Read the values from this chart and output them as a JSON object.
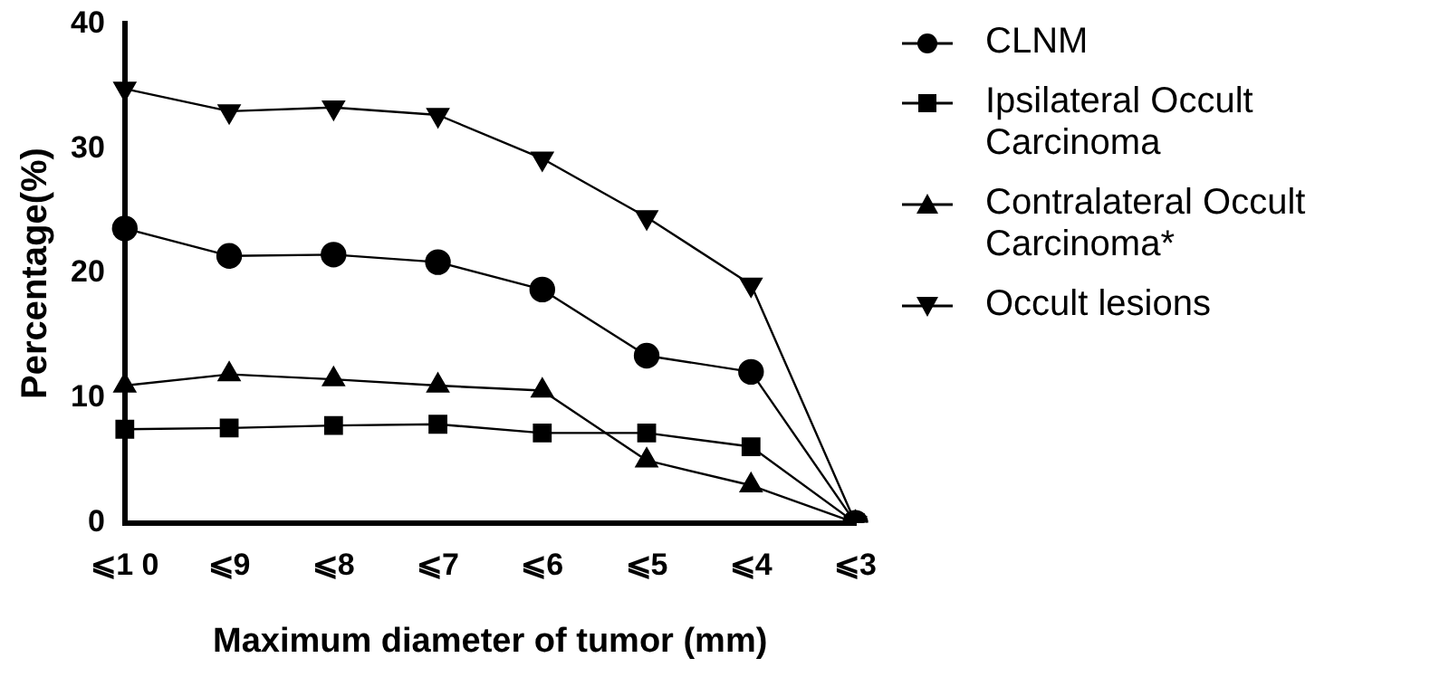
{
  "chart_data": {
    "type": "line",
    "xlabel": "Maximum diameter of tumor (mm)",
    "ylabel": "Percentage(%)",
    "categories": [
      "⩽1 0",
      "⩽9",
      "⩽8",
      "⩽7",
      "⩽6",
      "⩽5",
      "⩽4",
      "⩽3"
    ],
    "ylim": [
      0,
      40
    ],
    "yticks": [
      0,
      10,
      20,
      30,
      40
    ],
    "grid": false,
    "legend": "right",
    "series": [
      {
        "name": "CLNM",
        "color": "#000000",
        "marker": "circle",
        "values": [
          23.6,
          21.4,
          21.5,
          20.9,
          18.7,
          13.4,
          12.1,
          0
        ]
      },
      {
        "name": "Ipsilateral Occult Carcinoma",
        "color": "#000000",
        "marker": "square",
        "values": [
          7.5,
          7.6,
          7.8,
          7.9,
          7.2,
          7.2,
          6.1,
          0
        ]
      },
      {
        "name": "Contralateral Occult Carcinoma*",
        "color": "#000000",
        "marker": "triangle",
        "values": [
          11.0,
          11.9,
          11.5,
          11.0,
          10.6,
          5.0,
          3.0,
          0
        ]
      },
      {
        "name": "Occult lesions",
        "color": "#000000",
        "marker": "triangle-down",
        "values": [
          34.8,
          33.0,
          33.3,
          32.7,
          29.2,
          24.5,
          19.1,
          0
        ]
      }
    ]
  }
}
